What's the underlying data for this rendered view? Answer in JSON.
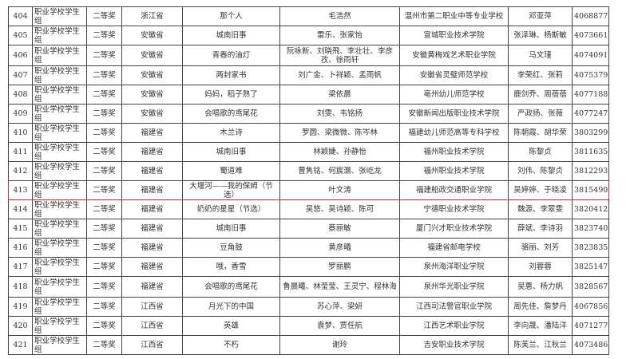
{
  "highlight_color": "#d9232d",
  "highlight_no": "413",
  "rows": [
    {
      "no": "404",
      "group": "职业学校学生组",
      "award": "二等奖",
      "province": "浙江省",
      "title": "那个人",
      "students": "毛浩然",
      "school": "温州市第二职业中等专业学校",
      "teachers": "邓亚萍",
      "id": "4068877"
    },
    {
      "no": "405",
      "group": "职业学校学生组",
      "award": "二等奖",
      "province": "安徽省",
      "title": "城南旧事",
      "students": "雷乐、张家怡",
      "school": "宣城职业技术学院",
      "teachers": "张泽琳、杨斯敏",
      "id": "4073661"
    },
    {
      "no": "406",
      "group": "职业学校学生组",
      "award": "二等奖",
      "province": "安徽省",
      "title": "青春的油灯",
      "students": "阮咏新、刘晓飛、李壮壮、李彦孜、徐雨轩",
      "school": "安徽黄梅戏艺术职业学院",
      "teachers": "马文瑾",
      "id": "4074091"
    },
    {
      "no": "407",
      "group": "职业学校学生组",
      "award": "二等奖",
      "province": "安徽省",
      "title": "两封家书",
      "students": "刘广金、卜祥颖、孟雨帆",
      "school": "安徽省灵璧师范学校",
      "teachers": "李荣红、张莉",
      "id": "4075379"
    },
    {
      "no": "408",
      "group": "职业学校学生组",
      "award": "二等奖",
      "province": "安徽省",
      "title": "妈妈，稻子熟了",
      "students": "梁依晨",
      "school": "亳州幼儿师范学校",
      "teachers": "鹿剑乔、周蓓蓓",
      "id": "4077188"
    },
    {
      "no": "409",
      "group": "职业学校学生组",
      "award": "二等奖",
      "province": "安徽省",
      "title": "会唱歌的鸢尾花",
      "students": "刘雯、韦铭扬",
      "school": "安徽新闻出版职业技术学院",
      "teachers": "严政扬、张薇",
      "id": "4077247"
    },
    {
      "no": "410",
      "group": "职业学校学生组",
      "award": "二等奖",
      "province": "福建省",
      "title": "木兰诗",
      "students": "罗圆、梁微微、陈岑林",
      "school": "福建幼儿师范高等专科学校",
      "teachers": "陈朝霞、胡华荣",
      "id": "3803299"
    },
    {
      "no": "411",
      "group": "职业学校学生组",
      "award": "二等奖",
      "province": "福建省",
      "title": "城南旧事",
      "students": "林颖婕、孙静怡",
      "school": "福州职业技术学院",
      "teachers": "陈黎贞",
      "id": "3811635"
    },
    {
      "no": "412",
      "group": "职业学校学生组",
      "award": "二等奖",
      "province": "福建省",
      "title": "蜀道难",
      "students": "曹隽铭、何宸灏、张屹龙",
      "school": "福州职业技术学院",
      "teachers": "刘伟、陈黎贞",
      "id": "3812293"
    },
    {
      "no": "413",
      "group": "职业学校学生组",
      "award": "二等奖",
      "province": "福建省",
      "title": "大堰河——我的保姆（节选）",
      "students": "叶文涛",
      "school": "福建船政交通职业学院",
      "teachers": "吴婷婷、于晓凌",
      "id": "3815490"
    },
    {
      "no": "414",
      "group": "职业学校学生组",
      "award": "二等奖",
      "province": "福建省",
      "title": "奶奶的星星（节选）",
      "students": "吴悠、吴诗颖、陈可",
      "school": "宁德职业技术学院",
      "teachers": "魏源、李翠雯",
      "id": "3820412"
    },
    {
      "no": "415",
      "group": "职业学校学生组",
      "award": "二等奖",
      "province": "福建省",
      "title": "城南旧事",
      "students": "蔡丽敏",
      "school": "厦门兴才职业技术学院",
      "teachers": "薛斌、李诗羽",
      "id": "3823740"
    },
    {
      "no": "416",
      "group": "职业学校学生组",
      "award": "二等奖",
      "province": "福建省",
      "title": "豆角鼓",
      "students": "黄彦曦",
      "school": "福建省邮电学校",
      "teachers": "骆丽、刘芳",
      "id": "3823835"
    },
    {
      "no": "417",
      "group": "职业学校学生组",
      "award": "二等奖",
      "province": "福建省",
      "title": "哦，香雪",
      "students": "罗丽鹏",
      "school": "泉州海洋职业学院",
      "teachers": "刘蓉蓉",
      "id": "3825147"
    },
    {
      "no": "418",
      "group": "职业学校学生组",
      "award": "二等奖",
      "province": "福建省",
      "title": "会唱歌的鸢尾花",
      "students": "鲁晨曦、林莹莹、王灵宁、程林海",
      "school": "泉州华光职业学院",
      "teachers": "吴惠、杨力帆",
      "id": "3828567"
    },
    {
      "no": "419",
      "group": "职业学校学生组",
      "award": "二等奖",
      "province": "江西省",
      "title": "月光下的中国",
      "students": "苏心萍、梁妍",
      "school": "江西司法警官职业学院",
      "teachers": "周先佳、詹梦丹",
      "id": "4067856"
    },
    {
      "no": "420",
      "group": "职业学校学生组",
      "award": "二等奖",
      "province": "江西省",
      "title": "英雄",
      "students": "袁梦、贾任航",
      "school": "江西艺术职业学院",
      "teachers": "李向晟、潘陆洋",
      "id": "4071277"
    },
    {
      "no": "421",
      "group": "职业学校学生组",
      "award": "二等奖",
      "province": "江西省",
      "title": "不朽",
      "students": "谢玲",
      "school": "吉安职业技术学院",
      "teachers": "陈芙兰、江秋兰",
      "id": "4073486"
    }
  ]
}
